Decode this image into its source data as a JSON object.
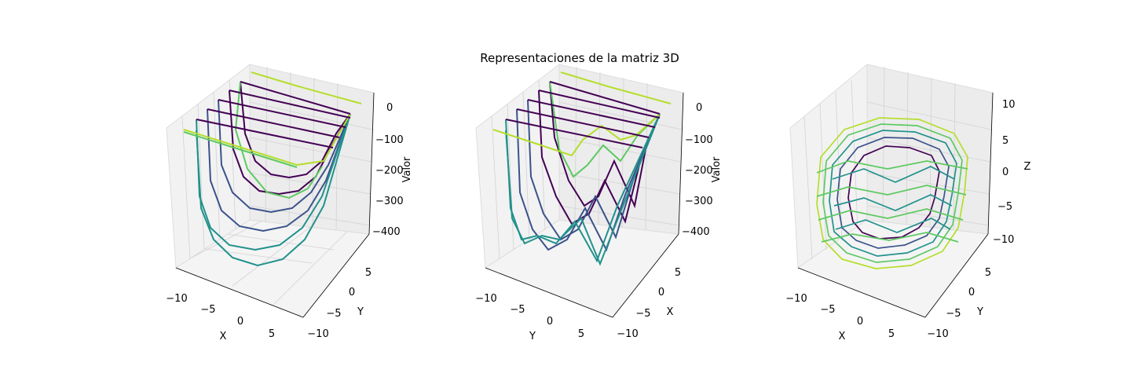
{
  "title": "Representaciones de la matriz 3D",
  "colors": {
    "low": "#440154",
    "mid1": "#3b528b",
    "mid2": "#21918c",
    "mid3": "#5ec962",
    "high": "#b5de2b",
    "pane": "#f2f2f2",
    "grid": "#d0d0d0"
  },
  "chart_data": [
    {
      "type": "line",
      "title": "",
      "xlabel": "X",
      "ylabel": "Y",
      "zlabel": "Valor",
      "xticks": [
        "−10",
        "−5",
        "0",
        "5"
      ],
      "yticks": [
        "−10",
        "−5",
        "0",
        "5"
      ],
      "zticks": [
        "0",
        "−100",
        "−200",
        "−300",
        "−400"
      ],
      "xlim": [
        -11,
        9
      ],
      "ylim": [
        -11,
        9
      ],
      "zlim": [
        -420,
        20
      ],
      "series_profile": "valor = x^2 + y^2 - 400 (curves at constant y)"
    },
    {
      "type": "line",
      "title": "",
      "xlabel": "Y",
      "ylabel": "X",
      "zlabel": "Valor",
      "xticks": [
        "−10",
        "−5",
        "0",
        "5"
      ],
      "yticks": [
        "−10",
        "−5",
        "0",
        "5"
      ],
      "zticks": [
        "0",
        "−100",
        "−200",
        "−300",
        "−400"
      ],
      "xlim": [
        -11,
        9
      ],
      "ylim": [
        -11,
        9
      ],
      "zlim": [
        -420,
        20
      ],
      "series_profile": "valor profile curves at constant x"
    },
    {
      "type": "line",
      "title": "",
      "xlabel": "X",
      "ylabel": "Y",
      "zlabel": "Z",
      "xticks": [
        "−10",
        "−5",
        "0",
        "5"
      ],
      "yticks": [
        "−10",
        "−5",
        "0",
        "5"
      ],
      "zticks": [
        "10",
        "5",
        "0",
        "−5",
        "−10"
      ],
      "xlim": [
        -11,
        9
      ],
      "ylim": [
        -11,
        9
      ],
      "zlim": [
        -10,
        10
      ],
      "series_profile": "contour loops stacked at several z levels"
    }
  ]
}
